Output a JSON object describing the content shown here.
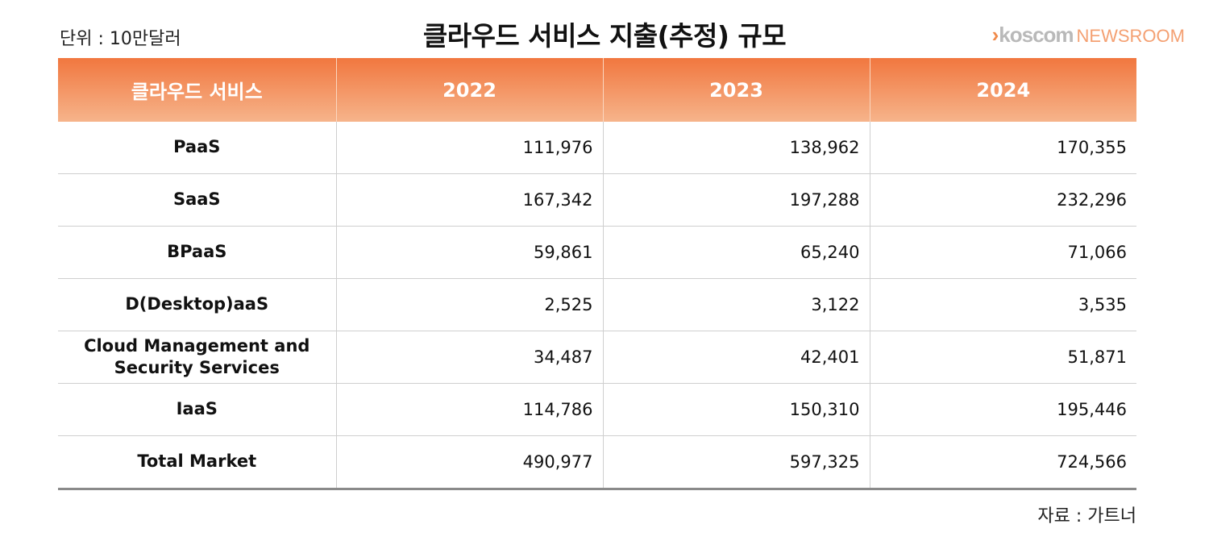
{
  "unit_note": "단위 : 10만달러",
  "brand": {
    "chevron": "›",
    "name": "koscom",
    "suffix": "NEWSROOM"
  },
  "source_note": "자료 : 가트너",
  "colors": {
    "header_top": "#f1773f",
    "header_bottom": "#f6b48b",
    "brand_accent": "#f08a4b"
  },
  "chart_data": {
    "type": "table",
    "title": "클라우드 서비스 지출(추정) 규모",
    "columns": [
      "클라우드 서비스",
      "2022",
      "2023",
      "2024"
    ],
    "rows": [
      {
        "label": "PaaS",
        "values": [
          "111,976",
          "138,962",
          "170,355"
        ]
      },
      {
        "label": "SaaS",
        "values": [
          "167,342",
          "197,288",
          "232,296"
        ]
      },
      {
        "label": "BPaaS",
        "values": [
          "59,861",
          "65,240",
          "71,066"
        ]
      },
      {
        "label": "D(Desktop)aaS",
        "values": [
          "2,525",
          "3,122",
          "3,535"
        ]
      },
      {
        "label": "Cloud Management and Security Services",
        "values": [
          "34,487",
          "42,401",
          "51,871"
        ]
      },
      {
        "label": "IaaS",
        "values": [
          "114,786",
          "150,310",
          "195,446"
        ]
      },
      {
        "label": "Total Market",
        "values": [
          "490,977",
          "597,325",
          "724,566"
        ]
      }
    ]
  }
}
